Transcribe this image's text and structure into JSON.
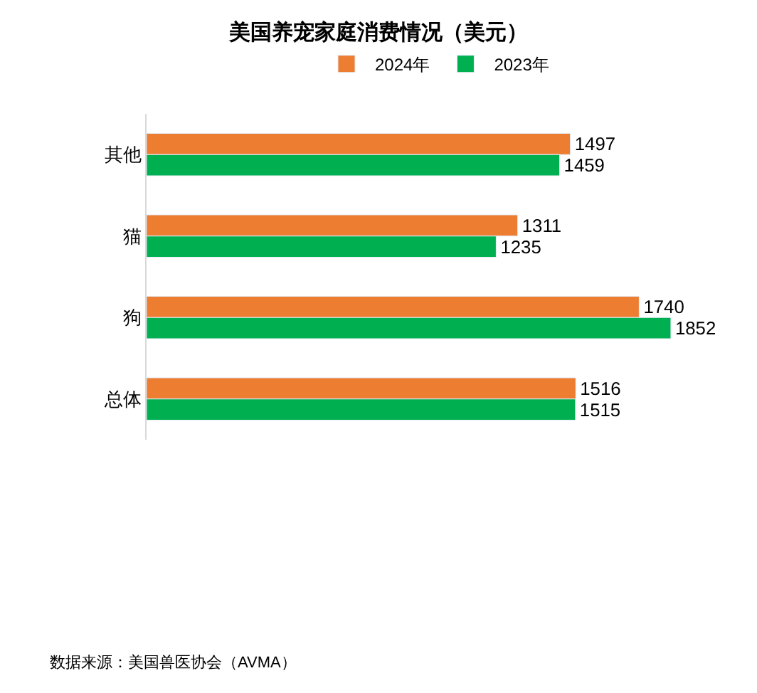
{
  "chart_data": {
    "type": "bar",
    "orientation": "horizontal",
    "title": "美国养宠家庭消费情况（美元）",
    "categories": [
      "其他",
      "猫",
      "狗",
      "总体"
    ],
    "series": [
      {
        "name": "2024年",
        "color": "#ed7d31",
        "values": [
          1497,
          1311,
          1740,
          1516
        ]
      },
      {
        "name": "2023年",
        "color": "#00b050",
        "values": [
          1459,
          1235,
          1852,
          1515
        ]
      }
    ],
    "data_labels": true,
    "legend": "top",
    "tick_labels": "y",
    "annotations": [
      "数据来源：美国兽医协会（AVMA）"
    ]
  }
}
